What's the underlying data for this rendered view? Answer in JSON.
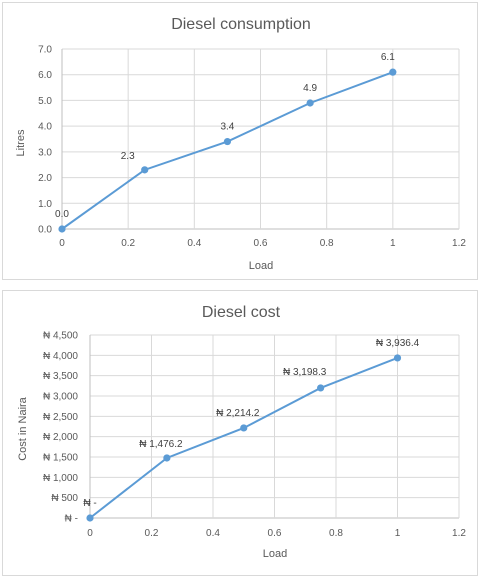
{
  "chart_data": [
    {
      "type": "scatter",
      "title": "Diesel consumption",
      "xlabel": "Load",
      "ylabel": "Litres",
      "xlim": [
        0,
        1.2
      ],
      "ylim": [
        0,
        7
      ],
      "x_ticks": [
        "0",
        "0.2",
        "0.4",
        "0.6",
        "0.8",
        "1",
        "1.2"
      ],
      "y_ticks": [
        "0.0",
        "1.0",
        "2.0",
        "3.0",
        "4.0",
        "5.0",
        "6.0",
        "7.0"
      ],
      "series": [
        {
          "x": [
            0,
            0.25,
            0.5,
            0.75,
            1
          ],
          "y": [
            0,
            2.3,
            3.4,
            4.9,
            6.1
          ],
          "labels": [
            "0.0",
            "2.3",
            "3.4",
            "4.9",
            "6.1"
          ],
          "color": "#5b9bd5"
        }
      ],
      "grid": true,
      "legend": "none"
    },
    {
      "type": "scatter",
      "title": "Diesel cost",
      "xlabel": "Load",
      "ylabel": "Cost in Naira",
      "xlim": [
        0,
        1.2
      ],
      "ylim": [
        0,
        4500
      ],
      "x_ticks": [
        "0",
        "0.2",
        "0.4",
        "0.6",
        "0.8",
        "1",
        "1.2"
      ],
      "y_ticks": [
        "₦ -",
        "₦ 500",
        "₦ 1,000",
        "₦ 1,500",
        "₦ 2,000",
        "₦ 2,500",
        "₦ 3,000",
        "₦ 3,500",
        "₦ 4,000",
        "₦ 4,500"
      ],
      "series": [
        {
          "x": [
            0,
            0.25,
            0.5,
            0.75,
            1
          ],
          "y": [
            0,
            1476.2,
            2214.2,
            3198.3,
            3936.4
          ],
          "labels": [
            "₦ -",
            "₦ 1,476.2",
            "₦ 2,214.2",
            "₦ 3,198.3",
            "₦ 3,936.4"
          ],
          "color": "#5b9bd5"
        }
      ],
      "grid": true,
      "legend": "none"
    }
  ]
}
